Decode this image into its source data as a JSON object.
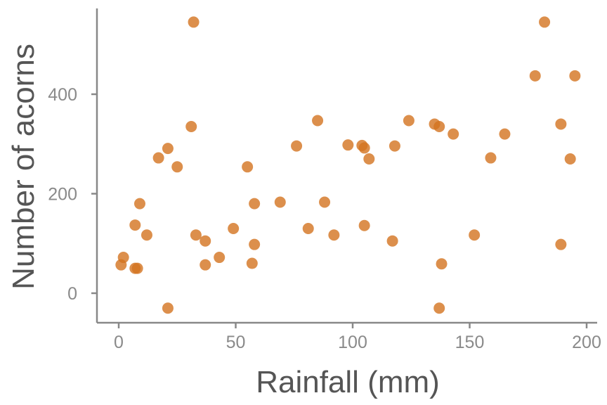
{
  "chart_data": {
    "type": "scatter",
    "xlabel": "Rainfall (mm)",
    "ylabel": "Number of acorns",
    "xlim": [
      -10,
      205
    ],
    "ylim": [
      -60,
      570
    ],
    "x_ticks": [
      0,
      50,
      100,
      150,
      200
    ],
    "y_ticks": [
      0,
      200,
      400
    ],
    "grid": false,
    "point_color": "#d3731f",
    "points": [
      {
        "x": 1,
        "y": 57
      },
      {
        "x": 2,
        "y": 72
      },
      {
        "x": 7,
        "y": 50
      },
      {
        "x": 8,
        "y": 50
      },
      {
        "x": 7,
        "y": 137
      },
      {
        "x": 9,
        "y": 180
      },
      {
        "x": 12,
        "y": 117
      },
      {
        "x": 17,
        "y": 272
      },
      {
        "x": 21,
        "y": 291
      },
      {
        "x": 21,
        "y": -30
      },
      {
        "x": 25,
        "y": 254
      },
      {
        "x": 31,
        "y": 335
      },
      {
        "x": 32,
        "y": 545
      },
      {
        "x": 33,
        "y": 117
      },
      {
        "x": 37,
        "y": 105
      },
      {
        "x": 37,
        "y": 57
      },
      {
        "x": 43,
        "y": 72
      },
      {
        "x": 49,
        "y": 130
      },
      {
        "x": 55,
        "y": 254
      },
      {
        "x": 57,
        "y": 60
      },
      {
        "x": 58,
        "y": 180
      },
      {
        "x": 58,
        "y": 98
      },
      {
        "x": 69,
        "y": 183
      },
      {
        "x": 76,
        "y": 296
      },
      {
        "x": 81,
        "y": 130
      },
      {
        "x": 85,
        "y": 347
      },
      {
        "x": 88,
        "y": 183
      },
      {
        "x": 92,
        "y": 117
      },
      {
        "x": 98,
        "y": 298
      },
      {
        "x": 104,
        "y": 297
      },
      {
        "x": 105,
        "y": 292
      },
      {
        "x": 105,
        "y": 136
      },
      {
        "x": 107,
        "y": 270
      },
      {
        "x": 117,
        "y": 105
      },
      {
        "x": 118,
        "y": 296
      },
      {
        "x": 124,
        "y": 347
      },
      {
        "x": 135,
        "y": 340
      },
      {
        "x": 137,
        "y": 335
      },
      {
        "x": 137,
        "y": -30
      },
      {
        "x": 138,
        "y": 59
      },
      {
        "x": 143,
        "y": 320
      },
      {
        "x": 152,
        "y": 117
      },
      {
        "x": 159,
        "y": 272
      },
      {
        "x": 165,
        "y": 320
      },
      {
        "x": 178,
        "y": 437
      },
      {
        "x": 182,
        "y": 545
      },
      {
        "x": 189,
        "y": 340
      },
      {
        "x": 189,
        "y": 98
      },
      {
        "x": 193,
        "y": 270
      },
      {
        "x": 195,
        "y": 437
      }
    ]
  }
}
